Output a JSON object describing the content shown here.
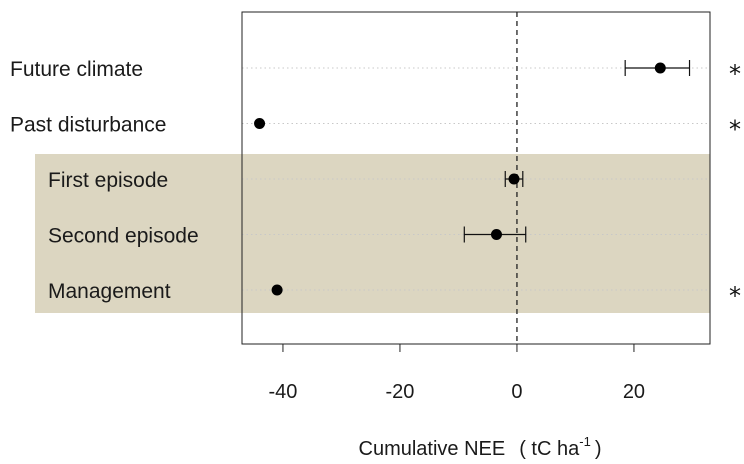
{
  "chart_data": {
    "type": "scatter",
    "xlabel": "Cumulative NEE",
    "xlabel_unit_prefix": "( tC ha",
    "xlabel_unit_exp": "-1",
    "xlabel_unit_suffix": ")",
    "xlim": [
      -47,
      33
    ],
    "xticks": [
      -40,
      -20,
      0,
      20
    ],
    "xtick_labels": [
      "-40",
      "-20",
      "0",
      "20"
    ],
    "reference_line_x": 0,
    "grid": "horizontal dotted",
    "highlight_color": "#dcd6c1",
    "point_color": "#000000",
    "categories": [
      "Future climate",
      "Past disturbance",
      "First episode",
      "Second episode",
      "Management"
    ],
    "highlighted": [
      false,
      false,
      true,
      true,
      true
    ],
    "values": [
      24.5,
      -44,
      -0.5,
      -3.5,
      -41
    ],
    "ci_low": [
      18.5,
      -44,
      -2,
      -9,
      -41
    ],
    "ci_high": [
      29.5,
      -44,
      1,
      1.5,
      -41
    ],
    "significance": [
      "*",
      "*",
      "",
      "",
      "*"
    ]
  }
}
